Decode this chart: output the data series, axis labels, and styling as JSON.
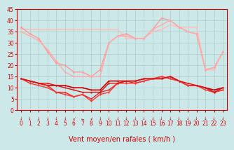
{
  "background_color": "#cce8e8",
  "grid_color": "#aacccc",
  "xlabel": "Vent moyen/en rafales ( km/h )",
  "xlim": [
    -0.5,
    23.5
  ],
  "ylim": [
    0,
    45
  ],
  "yticks": [
    0,
    5,
    10,
    15,
    20,
    25,
    30,
    35,
    40,
    45
  ],
  "xticks": [
    0,
    1,
    2,
    3,
    4,
    5,
    6,
    7,
    8,
    9,
    10,
    11,
    12,
    13,
    14,
    15,
    16,
    17,
    18,
    19,
    20,
    21,
    22,
    23
  ],
  "series": [
    {
      "comment": "light pink rafales high line 1 - nearly flat at 36 then drop",
      "x": [
        0,
        1,
        2,
        3,
        4,
        5,
        6,
        7,
        8,
        9,
        10,
        11,
        12,
        13,
        14,
        15,
        16,
        17,
        18,
        19,
        20,
        21,
        22,
        23
      ],
      "y": [
        36,
        36,
        36,
        36,
        36,
        36,
        36,
        36,
        36,
        36,
        36,
        36,
        32,
        32,
        32,
        35,
        36,
        38,
        37,
        37,
        37,
        18,
        18,
        26
      ],
      "color": "#ffbbbb",
      "lw": 1.0,
      "marker": "o",
      "ms": 1.5
    },
    {
      "comment": "light pink rafales line 2 - starts at 37, goes down to 15 then back up",
      "x": [
        0,
        1,
        2,
        3,
        4,
        5,
        6,
        7,
        8,
        9,
        10,
        11,
        12,
        13,
        14,
        15,
        16,
        17,
        18,
        19,
        20,
        21,
        22,
        23
      ],
      "y": [
        37,
        34,
        32,
        26,
        21,
        20,
        17,
        17,
        15,
        18,
        30,
        33,
        34,
        32,
        32,
        36,
        41,
        40,
        37,
        35,
        34,
        18,
        19,
        26
      ],
      "color": "#ff9999",
      "lw": 1.0,
      "marker": "o",
      "ms": 2.0
    },
    {
      "comment": "medium pink line - starts 35, drops to ~15, rises back up to 38, drops to 18",
      "x": [
        0,
        1,
        2,
        3,
        4,
        5,
        6,
        7,
        8,
        9,
        10,
        11,
        12,
        13,
        14,
        15,
        16,
        17,
        18,
        19,
        20,
        21,
        22,
        23
      ],
      "y": [
        35,
        33,
        31,
        27,
        22,
        17,
        15,
        15,
        15,
        15,
        30,
        33,
        33,
        32,
        32,
        36,
        38,
        40,
        37,
        35,
        34,
        18,
        19,
        26
      ],
      "color": "#ffaaaa",
      "lw": 1.0,
      "marker": "o",
      "ms": 1.5
    },
    {
      "comment": "dark red flat line at ~14 with small variation",
      "x": [
        0,
        1,
        2,
        3,
        4,
        5,
        6,
        7,
        8,
        9,
        10,
        11,
        12,
        13,
        14,
        15,
        16,
        17,
        18,
        19,
        20,
        21,
        22,
        23
      ],
      "y": [
        14,
        13,
        12,
        11,
        11,
        11,
        10,
        10,
        9,
        9,
        13,
        13,
        13,
        13,
        14,
        14,
        14,
        15,
        13,
        11,
        11,
        10,
        9,
        10
      ],
      "color": "#cc0000",
      "lw": 1.2,
      "marker": "o",
      "ms": 1.5
    },
    {
      "comment": "dark red line with dip to 5-6",
      "x": [
        0,
        1,
        2,
        3,
        4,
        5,
        6,
        7,
        8,
        9,
        10,
        11,
        12,
        13,
        14,
        15,
        16,
        17,
        18,
        19,
        20,
        21,
        22,
        23
      ],
      "y": [
        14,
        13,
        12,
        11,
        8,
        8,
        6,
        7,
        5,
        8,
        9,
        12,
        13,
        12,
        13,
        14,
        15,
        14,
        13,
        11,
        11,
        10,
        8,
        9
      ],
      "color": "#ee2222",
      "lw": 1.0,
      "marker": "o",
      "ms": 1.5
    },
    {
      "comment": "red line with deep dip to 4",
      "x": [
        0,
        1,
        2,
        3,
        4,
        5,
        6,
        7,
        8,
        9,
        10,
        11,
        12,
        13,
        14,
        15,
        16,
        17,
        18,
        19,
        20,
        21,
        22,
        23
      ],
      "y": [
        14,
        12,
        11,
        10,
        8,
        7,
        6,
        7,
        4,
        7,
        8,
        12,
        12,
        12,
        13,
        14,
        15,
        14,
        13,
        11,
        11,
        9,
        8,
        9
      ],
      "color": "#ff3333",
      "lw": 1.0,
      "marker": "o",
      "ms": 1.5
    },
    {
      "comment": "medium dark red - nearly flat around 12-14",
      "x": [
        0,
        1,
        2,
        3,
        4,
        5,
        6,
        7,
        8,
        9,
        10,
        11,
        12,
        13,
        14,
        15,
        16,
        17,
        18,
        19,
        20,
        21,
        22,
        23
      ],
      "y": [
        14,
        13,
        12,
        12,
        11,
        10,
        9,
        8,
        8,
        8,
        12,
        12,
        13,
        13,
        14,
        14,
        14,
        15,
        13,
        12,
        11,
        10,
        8,
        10
      ],
      "color": "#dd1111",
      "lw": 1.0,
      "marker": "o",
      "ms": 1.5
    }
  ],
  "wind_arrows": [
    "s",
    "s",
    "s",
    "s",
    "s",
    "s",
    "sw",
    "w",
    "sw",
    "s",
    "s",
    "s",
    "s",
    "s",
    "s",
    "s",
    "s",
    "s",
    "s",
    "s",
    "s",
    "s",
    "s",
    "s"
  ],
  "wind_arrows_color": "#cc0000",
  "xlabel_color": "#cc0000",
  "xlabel_fontsize": 7,
  "tick_label_color": "#cc0000",
  "tick_fontsize": 5.5
}
